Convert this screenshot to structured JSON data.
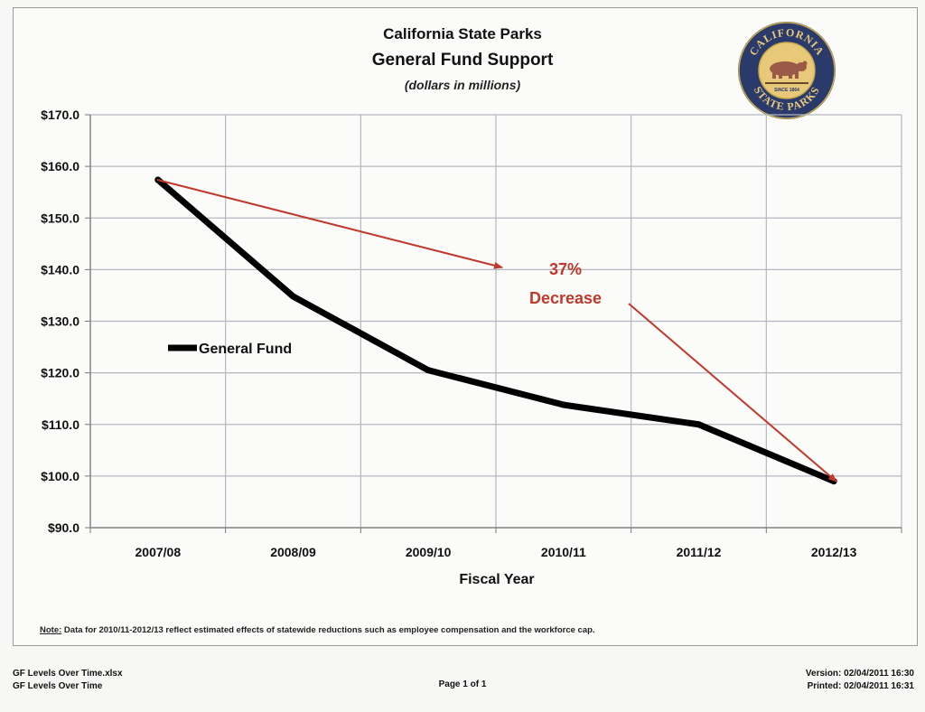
{
  "titles": {
    "line1": "California State Parks",
    "line2": "General Fund Support",
    "line3": "(dollars in millions)"
  },
  "logo": {
    "top_text": "CALIFORNIA",
    "bottom_text": "STATE PARKS",
    "since": "SINCE 1864",
    "colors": {
      "ring": "#2a3a6b",
      "inner": "#e8c97a",
      "bear": "#9b5a48"
    }
  },
  "chart_data": {
    "type": "line",
    "categories": [
      "2007/08",
      "2008/09",
      "2009/10",
      "2010/11",
      "2011/12",
      "2012/13"
    ],
    "series": [
      {
        "name": "General Fund",
        "color": "#000000",
        "values": [
          157.4,
          134.8,
          120.5,
          113.8,
          110.0,
          99.0
        ]
      }
    ],
    "ylim": [
      90,
      170
    ],
    "yticks": [
      90,
      100,
      110,
      120,
      130,
      140,
      150,
      160,
      170
    ],
    "ytick_labels": [
      "$90.0",
      "$100.0",
      "$110.0",
      "$120.0",
      "$130.0",
      "$140.0",
      "$150.0",
      "$160.0",
      "$170.0"
    ],
    "xlabel": "Fiscal Year",
    "grid": true,
    "legend_position": "left",
    "annotation": {
      "line1": "37%",
      "line2": "Decrease",
      "color": "#c0392b"
    }
  },
  "note": {
    "label": "Note:",
    "text": " Data for 2010/11-2012/13 reflect estimated effects of statewide reductions such as employee compensation and the workforce cap."
  },
  "footer": {
    "file1": "GF Levels Over Time.xlsx",
    "file2": "GF Levels Over Time",
    "page": "Page 1 of 1",
    "version": "Version:  02/04/2011  16:30",
    "printed": "Printed:  02/04/2011  16:31"
  }
}
